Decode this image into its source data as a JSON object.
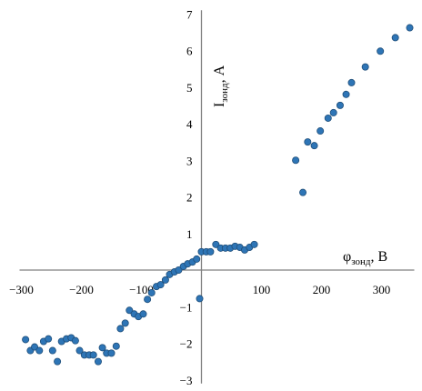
{
  "chart_data": {
    "type": "scatter",
    "title": "",
    "xlabel": {
      "main": "φ",
      "sub": "зонд",
      "unit": ", В"
    },
    "ylabel": {
      "main": "I",
      "sub": "зонд",
      "unit": ", А"
    },
    "xlim": [
      -300,
      350
    ],
    "ylim": [
      -3,
      7
    ],
    "xticks": [
      -300,
      -200,
      -100,
      0,
      100,
      200,
      300
    ],
    "yticks": [
      -3,
      -2,
      -1,
      0,
      1,
      2,
      3,
      4,
      5,
      6,
      7
    ],
    "xtick_labels": [
      "−300",
      "−200",
      "−100",
      "",
      "100",
      "200",
      "300"
    ],
    "ytick_labels": [
      "−3",
      "−2",
      "−1",
      "",
      "1",
      "2",
      "3",
      "4",
      "5",
      "6",
      "7"
    ],
    "grid": false,
    "legend": "none",
    "colors": {
      "marker_fill": "#2E75B6",
      "marker_edge": "#1F4E79",
      "axis": "#808080"
    },
    "series": [
      {
        "points": [
          [
            -293,
            -1.9
          ],
          [
            -285,
            -2.2
          ],
          [
            -278,
            -2.1
          ],
          [
            -270,
            -2.2
          ],
          [
            -263,
            -1.95
          ],
          [
            -255,
            -1.88
          ],
          [
            -248,
            -2.2
          ],
          [
            -240,
            -2.5
          ],
          [
            -233,
            -1.95
          ],
          [
            -225,
            -1.88
          ],
          [
            -217,
            -1.85
          ],
          [
            -210,
            -1.93
          ],
          [
            -203,
            -2.2
          ],
          [
            -195,
            -2.32
          ],
          [
            -187,
            -2.32
          ],
          [
            -180,
            -2.32
          ],
          [
            -172,
            -2.5
          ],
          [
            -165,
            -2.12
          ],
          [
            -158,
            -2.27
          ],
          [
            -150,
            -2.27
          ],
          [
            -142,
            -2.08
          ],
          [
            -135,
            -1.6
          ],
          [
            -127,
            -1.45
          ],
          [
            -120,
            -1.1
          ],
          [
            -112,
            -1.2
          ],
          [
            -105,
            -1.27
          ],
          [
            -97,
            -1.2
          ],
          [
            -90,
            -0.8
          ],
          [
            -83,
            -0.62
          ],
          [
            -75,
            -0.45
          ],
          [
            -68,
            -0.4
          ],
          [
            -60,
            -0.27
          ],
          [
            -53,
            -0.12
          ],
          [
            -45,
            -0.05
          ],
          [
            -38,
            0.0
          ],
          [
            -3,
            -0.78
          ],
          [
            -30,
            0.1
          ],
          [
            -23,
            0.17
          ],
          [
            -15,
            0.22
          ],
          [
            -8,
            0.3
          ],
          [
            0,
            0.5
          ],
          [
            8,
            0.5
          ],
          [
            15,
            0.5
          ],
          [
            24,
            0.7
          ],
          [
            32,
            0.6
          ],
          [
            40,
            0.6
          ],
          [
            48,
            0.6
          ],
          [
            56,
            0.65
          ],
          [
            64,
            0.62
          ],
          [
            72,
            0.55
          ],
          [
            80,
            0.62
          ],
          [
            88,
            0.7
          ],
          [
            157,
            3.0
          ],
          [
            169,
            2.12
          ],
          [
            177,
            3.5
          ],
          [
            188,
            3.4
          ],
          [
            198,
            3.8
          ],
          [
            211,
            4.15
          ],
          [
            220,
            4.3
          ],
          [
            231,
            4.5
          ],
          [
            241,
            4.8
          ],
          [
            250,
            5.12
          ],
          [
            273,
            5.55
          ],
          [
            298,
            5.98
          ],
          [
            323,
            6.35
          ],
          [
            347,
            6.62
          ]
        ]
      }
    ]
  }
}
